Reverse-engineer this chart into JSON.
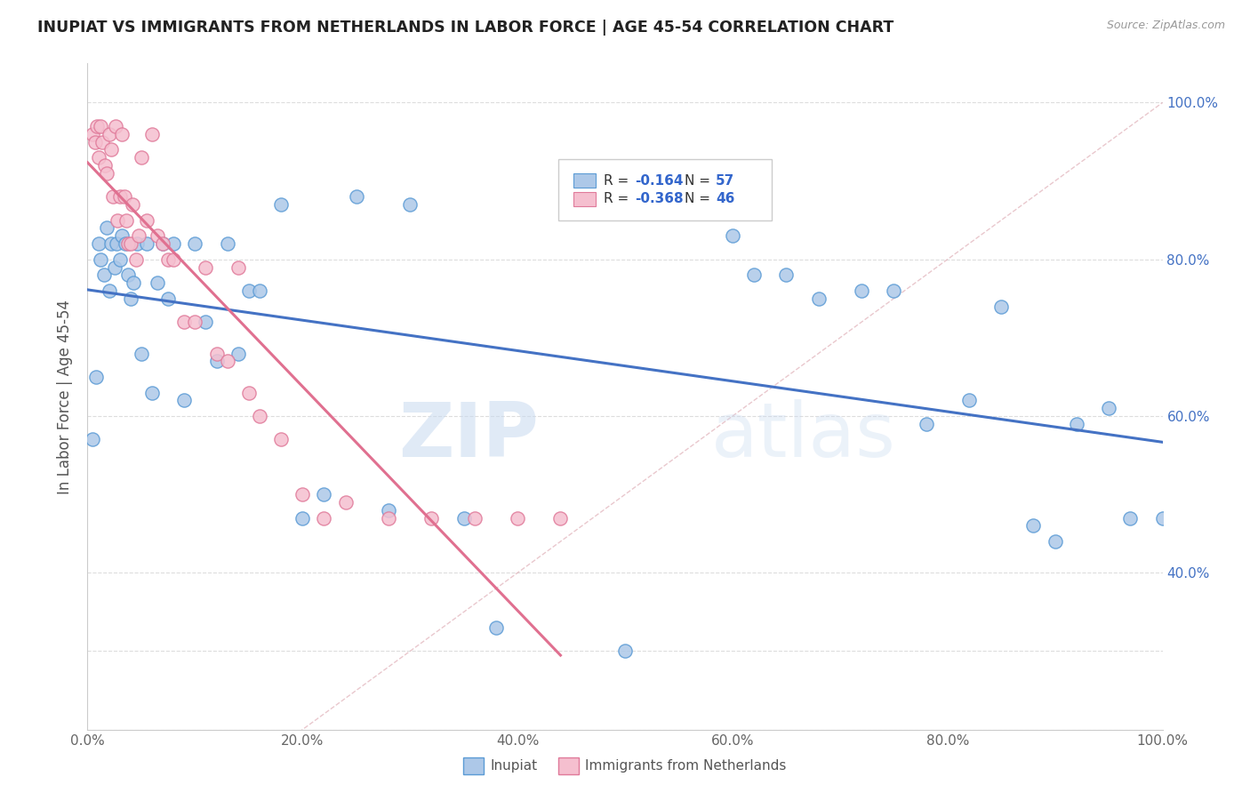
{
  "title": "INUPIAT VS IMMIGRANTS FROM NETHERLANDS IN LABOR FORCE | AGE 45-54 CORRELATION CHART",
  "source": "Source: ZipAtlas.com",
  "ylabel": "In Labor Force | Age 45-54",
  "xlim": [
    0.0,
    1.0
  ],
  "ylim": [
    0.2,
    1.05
  ],
  "xtick_labels": [
    "0.0%",
    "20.0%",
    "40.0%",
    "60.0%",
    "80.0%",
    "100.0%"
  ],
  "xtick_vals": [
    0.0,
    0.2,
    0.4,
    0.6,
    0.8,
    1.0
  ],
  "ytick_labels": [
    "",
    "",
    "40.0%",
    "60.0%",
    "80.0%",
    "100.0%"
  ],
  "ytick_vals": [
    0.2,
    0.3,
    0.4,
    0.6,
    0.8,
    1.0
  ],
  "inupiat_color": "#adc8e8",
  "netherlands_color": "#f5bfcf",
  "inupiat_edge_color": "#5b9bd5",
  "netherlands_edge_color": "#e07a9a",
  "trendline_inupiat_color": "#4472c4",
  "trendline_netherlands_color": "#e07090",
  "trendline_diagonal_color": "#e0b0b8",
  "R_inupiat": -0.164,
  "N_inupiat": 57,
  "R_netherlands": -0.368,
  "N_netherlands": 46,
  "inupiat_x": [
    0.005,
    0.008,
    0.01,
    0.012,
    0.015,
    0.018,
    0.02,
    0.022,
    0.025,
    0.027,
    0.03,
    0.032,
    0.035,
    0.038,
    0.04,
    0.043,
    0.046,
    0.05,
    0.055,
    0.06,
    0.065,
    0.07,
    0.075,
    0.08,
    0.09,
    0.1,
    0.11,
    0.12,
    0.13,
    0.14,
    0.15,
    0.16,
    0.18,
    0.2,
    0.22,
    0.25,
    0.28,
    0.3,
    0.35,
    0.38,
    0.5,
    0.55,
    0.6,
    0.62,
    0.65,
    0.68,
    0.72,
    0.75,
    0.78,
    0.82,
    0.85,
    0.88,
    0.9,
    0.92,
    0.95,
    0.97,
    1.0
  ],
  "inupiat_y": [
    0.57,
    0.65,
    0.82,
    0.8,
    0.78,
    0.84,
    0.76,
    0.82,
    0.79,
    0.82,
    0.8,
    0.83,
    0.82,
    0.78,
    0.75,
    0.77,
    0.82,
    0.68,
    0.82,
    0.63,
    0.77,
    0.82,
    0.75,
    0.82,
    0.62,
    0.82,
    0.72,
    0.67,
    0.82,
    0.68,
    0.76,
    0.76,
    0.87,
    0.47,
    0.5,
    0.88,
    0.48,
    0.87,
    0.47,
    0.33,
    0.3,
    0.87,
    0.83,
    0.78,
    0.78,
    0.75,
    0.76,
    0.76,
    0.59,
    0.62,
    0.74,
    0.46,
    0.44,
    0.59,
    0.61,
    0.47,
    0.47
  ],
  "netherlands_x": [
    0.005,
    0.007,
    0.009,
    0.01,
    0.012,
    0.014,
    0.016,
    0.018,
    0.02,
    0.022,
    0.024,
    0.026,
    0.028,
    0.03,
    0.032,
    0.034,
    0.036,
    0.038,
    0.04,
    0.042,
    0.045,
    0.048,
    0.05,
    0.055,
    0.06,
    0.065,
    0.07,
    0.075,
    0.08,
    0.09,
    0.1,
    0.11,
    0.12,
    0.13,
    0.14,
    0.15,
    0.16,
    0.18,
    0.2,
    0.22,
    0.24,
    0.28,
    0.32,
    0.36,
    0.4,
    0.44
  ],
  "netherlands_y": [
    0.96,
    0.95,
    0.97,
    0.93,
    0.97,
    0.95,
    0.92,
    0.91,
    0.96,
    0.94,
    0.88,
    0.97,
    0.85,
    0.88,
    0.96,
    0.88,
    0.85,
    0.82,
    0.82,
    0.87,
    0.8,
    0.83,
    0.93,
    0.85,
    0.96,
    0.83,
    0.82,
    0.8,
    0.8,
    0.72,
    0.72,
    0.79,
    0.68,
    0.67,
    0.79,
    0.63,
    0.6,
    0.57,
    0.5,
    0.47,
    0.49,
    0.47,
    0.47,
    0.47,
    0.47,
    0.47
  ],
  "watermark_zip": "ZIP",
  "watermark_atlas": "atlas",
  "legend_label_inupiat": "Inupiat",
  "legend_label_netherlands": "Immigrants from Netherlands"
}
